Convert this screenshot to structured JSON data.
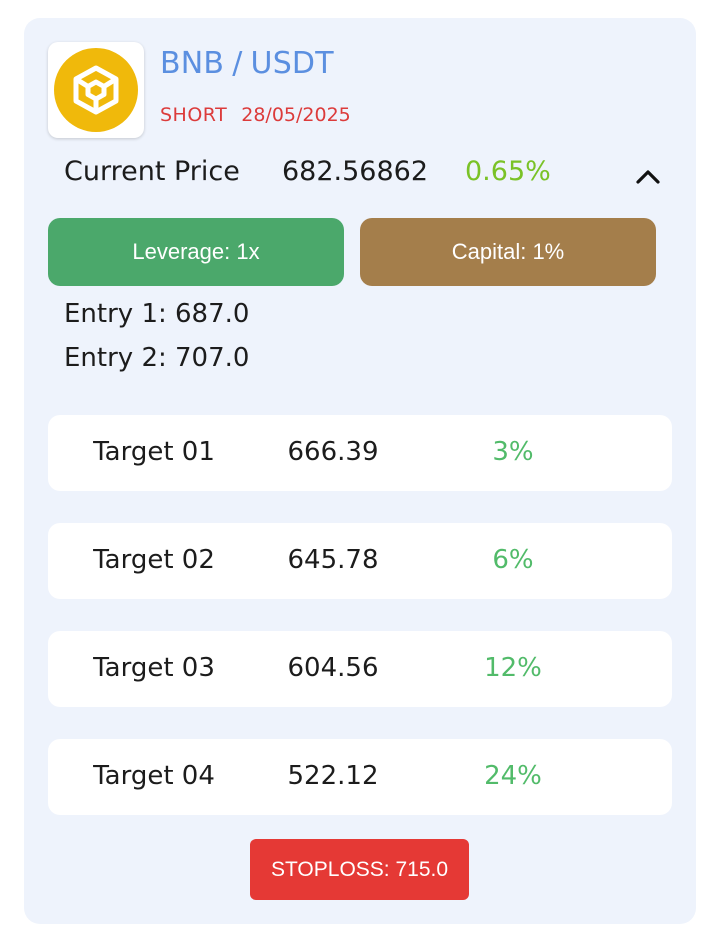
{
  "header": {
    "base": "BNB",
    "separator": "/",
    "quote": "USDT",
    "side": "SHORT",
    "date": "28/05/2025",
    "logo_icon": "bnb-logo-icon"
  },
  "price": {
    "label": "Current Price",
    "value": "682.56862",
    "change": "0.65%",
    "toggle_icon": "chevron-up-icon"
  },
  "buttons": {
    "leverage": "Leverage: 1x",
    "capital": "Capital: 1%"
  },
  "entries": [
    "Entry 1: 687.0",
    "Entry 2: 707.0"
  ],
  "targets": [
    {
      "name": "Target 01",
      "price": "666.39",
      "percent": "3%"
    },
    {
      "name": "Target 02",
      "price": "645.78",
      "percent": "6%"
    },
    {
      "name": "Target 03",
      "price": "604.56",
      "percent": "12%"
    },
    {
      "name": "Target 04",
      "price": "522.12",
      "percent": "24%"
    }
  ],
  "stoploss": "STOPLOSS: 715.0",
  "colors": {
    "card_bg": "#eef3fc",
    "pair": "#5b8fe0",
    "short": "#dc3b3b",
    "change_positive": "#7ac227",
    "leverage_button": "#4ba86b",
    "capital_button": "#a47e4b",
    "target_percent": "#52bb6a",
    "stoploss_button": "#e53935",
    "bnb_yellow": "#f0b90b"
  }
}
